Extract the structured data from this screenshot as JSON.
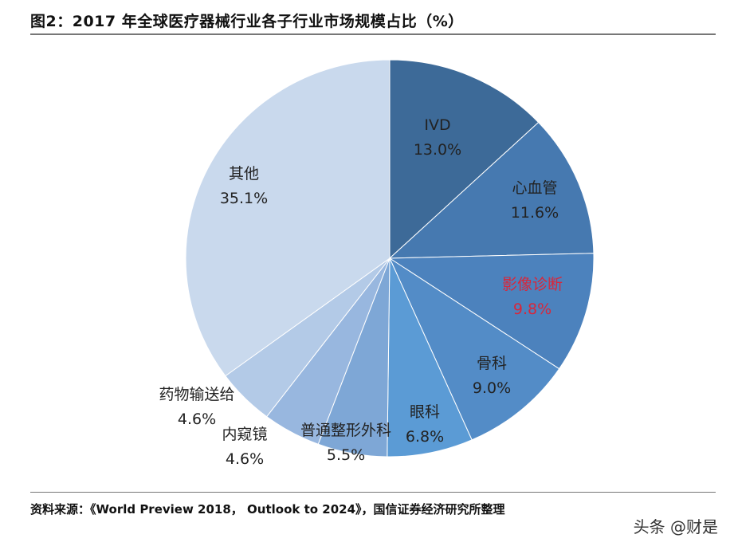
{
  "title": "图2：2017 年全球医疗器械行业各子行业市场规模占比（%）",
  "chart_data": {
    "type": "pie",
    "title": "2017 年全球医疗器械行业各子行业市场规模占比（%）",
    "start": "top",
    "direction": "clockwise",
    "slices": [
      {
        "label": "IVD",
        "value": 13.0,
        "value_label": "13.0%",
        "color": "#3d6a98"
      },
      {
        "label": "心血管",
        "value": 11.6,
        "value_label": "11.6%",
        "color": "#4679b0"
      },
      {
        "label": "影像诊断",
        "value": 9.8,
        "value_label": "9.8%",
        "color": "#4c82bd",
        "label_color": "#d9263a"
      },
      {
        "label": "骨科",
        "value": 9.0,
        "value_label": "9.0%",
        "color": "#538cc7"
      },
      {
        "label": "眼科",
        "value": 6.8,
        "value_label": "6.8%",
        "color": "#5b9bd5"
      },
      {
        "label": "普通整形外科",
        "value": 5.5,
        "value_label": "5.5%",
        "color": "#7ea7d6"
      },
      {
        "label": "内窥镜",
        "value": 4.6,
        "value_label": "4.6%",
        "color": "#98b7df"
      },
      {
        "label": "药物输送给",
        "value": 4.6,
        "value_label": "4.6%",
        "color": "#b3cae7"
      },
      {
        "label": "其他",
        "value": 35.1,
        "value_label": "35.1%",
        "color": "#c9d9ed"
      }
    ]
  },
  "source": "资料来源：《World Preview 2018， Outlook to 2024》，国信证券经济研究所整理",
  "watermark": "头条 @财是"
}
